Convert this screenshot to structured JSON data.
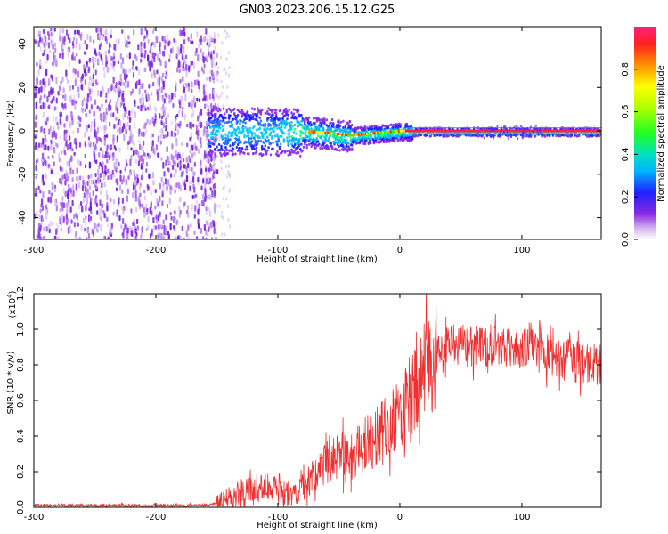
{
  "title": "GN03.2023.206.15.12.G25",
  "spectrogram": {
    "type": "heatmap",
    "xlabel": "Height of straight line (km)",
    "ylabel": "Frequency (Hz)",
    "xlim": [
      -300,
      165
    ],
    "ylim": [
      -50,
      48
    ],
    "xticks": [
      -300,
      -200,
      -100,
      0,
      100
    ],
    "yticks": [
      40,
      20,
      0,
      -20,
      -40
    ],
    "colorbar": {
      "label": "Normalized spectral amplitude",
      "range": [
        0,
        1
      ],
      "ticks": [
        "0.0",
        "0.2",
        "0.4",
        "0.6",
        "0.8"
      ]
    }
  },
  "chart_data": {
    "type": "line",
    "title": "",
    "xlabel": "Height of straight line (km)",
    "ylabel": "SNR (10 * v/v)",
    "yexp": "(x10",
    "yexp_sup": "4",
    "yexp_close": ")",
    "xlim": [
      -300,
      165
    ],
    "ylim": [
      0,
      1.2
    ],
    "xticks": [
      -300,
      -200,
      -100,
      0,
      100
    ],
    "yticks": [
      "0.0",
      "0.2",
      "0.4",
      "0.6",
      "0.8",
      "1.0",
      "1.2"
    ],
    "line_color": "#f03030",
    "series": [
      {
        "x": [
          -300,
          -250,
          -200,
          -160,
          -150,
          -140,
          -130,
          -120,
          -110,
          -100,
          -95,
          -90,
          -80,
          -75,
          -70,
          -60,
          -50,
          -40,
          -30,
          -20,
          -10,
          0,
          5,
          10,
          15,
          20,
          25,
          30,
          40,
          50,
          60,
          80,
          100,
          120,
          140,
          165
        ],
        "values": [
          0.01,
          0.01,
          0.01,
          0.01,
          0.02,
          0.05,
          0.08,
          0.1,
          0.11,
          0.12,
          0.08,
          0.06,
          0.12,
          0.15,
          0.18,
          0.25,
          0.3,
          0.28,
          0.35,
          0.4,
          0.45,
          0.52,
          0.58,
          0.65,
          0.72,
          0.78,
          0.82,
          0.86,
          0.9,
          0.92,
          0.9,
          0.9,
          0.9,
          0.86,
          0.82,
          0.8
        ]
      }
    ]
  }
}
